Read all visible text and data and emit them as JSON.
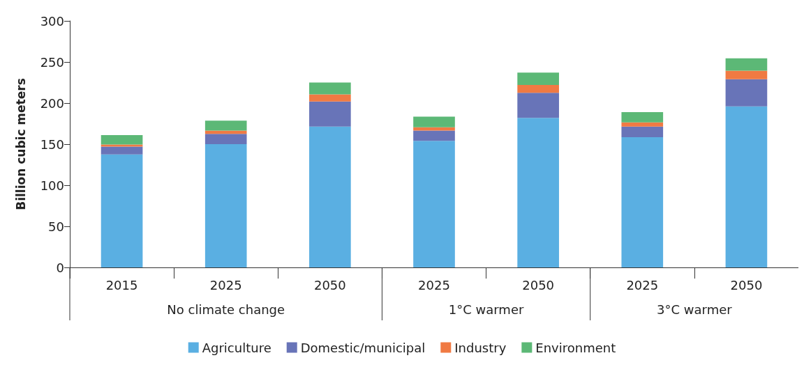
{
  "chart_data": {
    "type": "bar",
    "stacked": true,
    "ylabel": "Billion cubic meters",
    "categories": [
      "2015",
      "2025",
      "2050",
      "2025",
      "2050",
      "2025",
      "2050"
    ],
    "series": [
      {
        "name": "Agriculture",
        "color": "#5aafe2",
        "values": [
          137.5,
          150,
          171.5,
          154,
          182,
          158.5,
          196
        ]
      },
      {
        "name": "Domestic/municipal",
        "color": "#6874b8",
        "values": [
          9.5,
          12.5,
          30.5,
          12.5,
          30.5,
          13,
          33
        ]
      },
      {
        "name": "Industry",
        "color": "#f07a43",
        "values": [
          2.5,
          4,
          8.5,
          4,
          9.5,
          5,
          10.5
        ]
      },
      {
        "name": "Environment",
        "color": "#5cb876",
        "values": [
          11.5,
          12,
          14.5,
          13,
          15,
          12.5,
          15
        ]
      }
    ],
    "annotations": [
      "No climate change",
      "1°C warmer",
      "3°C warmer"
    ],
    "ylim": [
      0,
      300
    ],
    "yticks": [
      0,
      50,
      100,
      150,
      200,
      250,
      300
    ],
    "grid": false,
    "legend": "bottom"
  }
}
